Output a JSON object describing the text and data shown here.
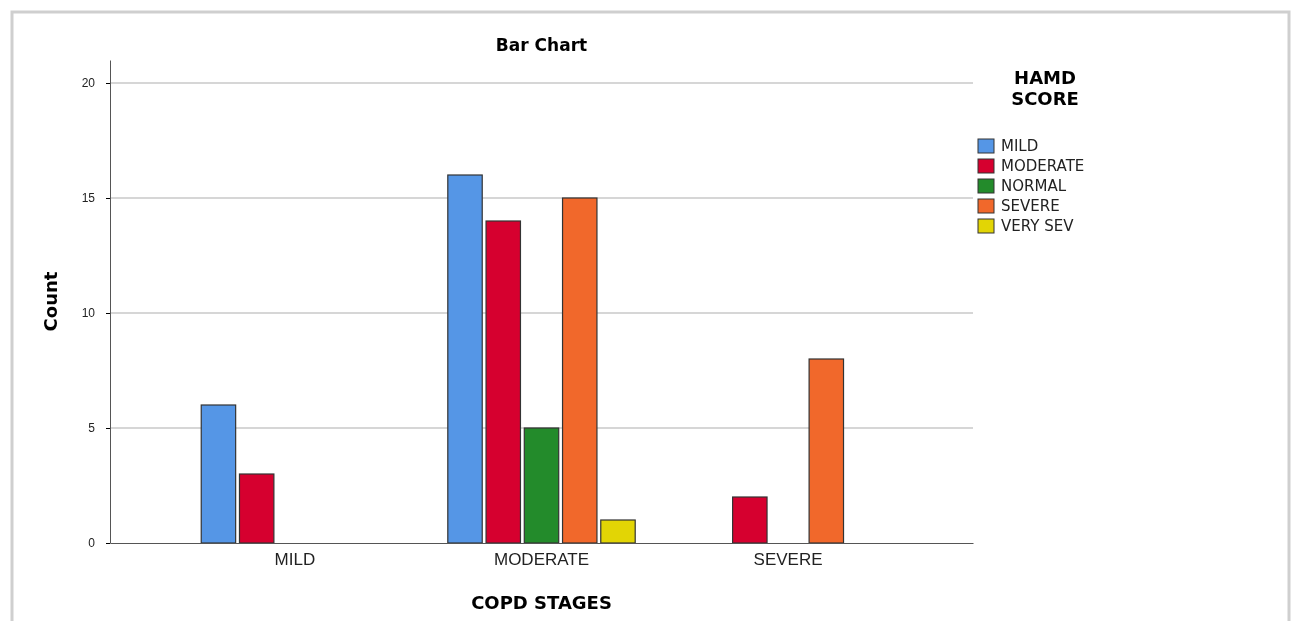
{
  "chart_data": {
    "type": "bar",
    "title": "Bar Chart",
    "xlabel": "COPD STAGES",
    "ylabel": "Count",
    "legend_title": "HAMD SCORE",
    "categories": [
      "MILD",
      "MODERATE",
      "SEVERE"
    ],
    "series": [
      {
        "name": "MILD",
        "color": "#5596e6",
        "values": [
          6,
          16,
          null
        ]
      },
      {
        "name": "MODERATE",
        "color": "#d6002f",
        "values": [
          3,
          14,
          2
        ]
      },
      {
        "name": "NORMAL",
        "color": "#238b2b",
        "values": [
          null,
          5,
          null
        ]
      },
      {
        "name": "SEVERE",
        "color": "#f1682b",
        "values": [
          null,
          15,
          8
        ]
      },
      {
        "name": "VERY SEV",
        "color": "#e2d505",
        "values": [
          null,
          1,
          null
        ]
      }
    ],
    "ylim": [
      0,
      21
    ],
    "yticks": [
      0,
      5,
      10,
      15,
      20
    ],
    "grid": "y",
    "legend": "top right"
  }
}
